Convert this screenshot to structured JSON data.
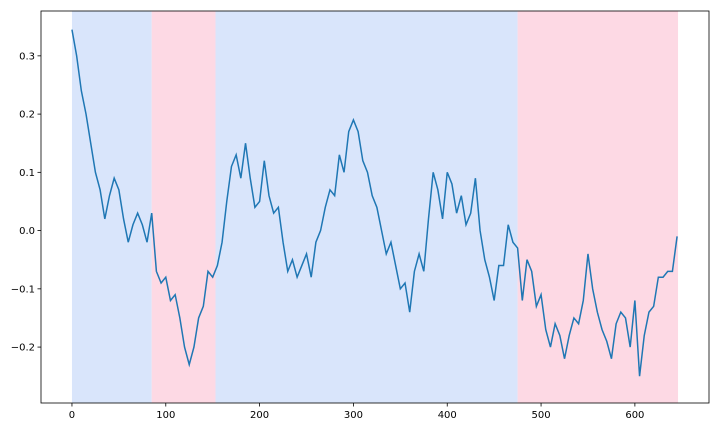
{
  "chart_data": {
    "type": "line",
    "color": "#1f77b4",
    "x": [
      0,
      5,
      10,
      15,
      20,
      25,
      30,
      35,
      40,
      45,
      50,
      55,
      60,
      65,
      70,
      75,
      80,
      85,
      90,
      95,
      100,
      105,
      110,
      115,
      120,
      125,
      130,
      135,
      140,
      145,
      150,
      155,
      160,
      165,
      170,
      175,
      180,
      185,
      190,
      195,
      200,
      205,
      210,
      215,
      220,
      225,
      230,
      235,
      240,
      245,
      250,
      255,
      260,
      265,
      270,
      275,
      280,
      285,
      290,
      295,
      300,
      305,
      310,
      315,
      320,
      325,
      330,
      335,
      340,
      345,
      350,
      355,
      360,
      365,
      370,
      375,
      380,
      385,
      390,
      395,
      400,
      405,
      410,
      415,
      420,
      425,
      430,
      435,
      440,
      445,
      450,
      455,
      460,
      465,
      470,
      475,
      480,
      485,
      490,
      495,
      500,
      505,
      510,
      515,
      520,
      525,
      530,
      535,
      540,
      545,
      550,
      555,
      560,
      565,
      570,
      575,
      580,
      585,
      590,
      595,
      600,
      605,
      610,
      615,
      620,
      625,
      630,
      635,
      640,
      645
    ],
    "values": [
      0.345,
      0.3,
      0.24,
      0.2,
      0.15,
      0.1,
      0.07,
      0.02,
      0.06,
      0.09,
      0.07,
      0.02,
      -0.02,
      0.01,
      0.03,
      0.01,
      -0.02,
      0.03,
      -0.07,
      -0.09,
      -0.08,
      -0.12,
      -0.11,
      -0.15,
      -0.2,
      -0.23,
      -0.2,
      -0.15,
      -0.13,
      -0.07,
      -0.08,
      -0.06,
      -0.02,
      0.05,
      0.11,
      0.13,
      0.09,
      0.15,
      0.09,
      0.04,
      0.05,
      0.12,
      0.06,
      0.03,
      0.04,
      -0.02,
      -0.07,
      -0.05,
      -0.08,
      -0.06,
      -0.04,
      -0.08,
      -0.02,
      0.0,
      0.04,
      0.07,
      0.06,
      0.13,
      0.1,
      0.17,
      0.19,
      0.17,
      0.12,
      0.1,
      0.06,
      0.04,
      0.0,
      -0.04,
      -0.02,
      -0.06,
      -0.1,
      -0.09,
      -0.14,
      -0.07,
      -0.04,
      -0.07,
      0.02,
      0.1,
      0.07,
      0.02,
      0.1,
      0.08,
      0.03,
      0.06,
      0.01,
      0.03,
      0.09,
      0.0,
      -0.05,
      -0.08,
      -0.12,
      -0.06,
      -0.06,
      0.01,
      -0.02,
      -0.03,
      -0.12,
      -0.05,
      -0.07,
      -0.13,
      -0.11,
      -0.17,
      -0.2,
      -0.16,
      -0.18,
      -0.22,
      -0.18,
      -0.15,
      -0.16,
      -0.12,
      -0.04,
      -0.1,
      -0.14,
      -0.17,
      -0.19,
      -0.22,
      -0.16,
      -0.14,
      -0.15,
      -0.2,
      -0.12,
      -0.25,
      -0.18,
      -0.14,
      -0.13,
      -0.08,
      -0.08,
      -0.07,
      -0.07,
      -0.01
    ],
    "regions": [
      {
        "start": 0,
        "end": 85,
        "color": "#d9e5fb"
      },
      {
        "start": 85,
        "end": 153,
        "color": "#fdd9e4"
      },
      {
        "start": 153,
        "end": 475,
        "color": "#d9e5fb"
      },
      {
        "start": 475,
        "end": 646,
        "color": "#fdd9e4"
      }
    ],
    "xlim": [
      -33,
      679
    ],
    "ylim": [
      -0.296,
      0.377
    ],
    "xticks": [
      0,
      100,
      200,
      300,
      400,
      500,
      600
    ],
    "yticks": [
      {
        "value": -0.2,
        "label": "−0.2"
      },
      {
        "value": -0.1,
        "label": "−0.1"
      },
      {
        "value": 0,
        "label": "0.0"
      },
      0.1,
      0.2,
      0.3
    ]
  }
}
